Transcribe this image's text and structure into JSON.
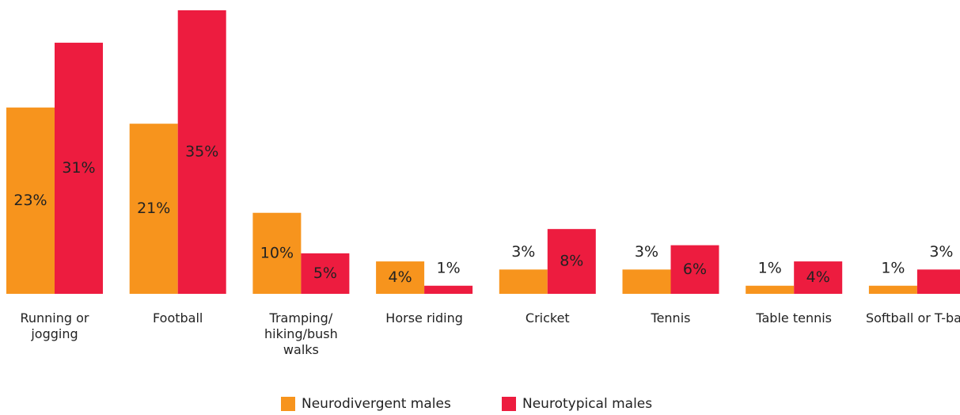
{
  "chart_data": {
    "type": "bar",
    "categories": [
      "Running or jogging",
      "Football",
      "Tramping/ hiking/bush walks",
      "Horse riding",
      "Cricket",
      "Tennis",
      "Table tennis",
      "Softball or T-ball"
    ],
    "series": [
      {
        "name": "Neurodivergent males",
        "color": "#f7941d",
        "values": [
          23,
          21,
          10,
          4,
          3,
          3,
          1,
          1
        ],
        "value_labels": [
          "23%",
          "21%",
          "10%",
          "4%",
          "3%",
          "3%",
          "1%",
          "1%"
        ]
      },
      {
        "name": "Neurotypical males",
        "color": "#ed1c3f",
        "values": [
          31,
          35,
          5,
          1,
          8,
          6,
          4,
          3
        ],
        "value_labels": [
          "31%",
          "35%",
          "5%",
          "1%",
          "8%",
          "6%",
          "4%",
          "3%"
        ]
      }
    ],
    "ylim": [
      0,
      35
    ],
    "legend": "bottom"
  }
}
